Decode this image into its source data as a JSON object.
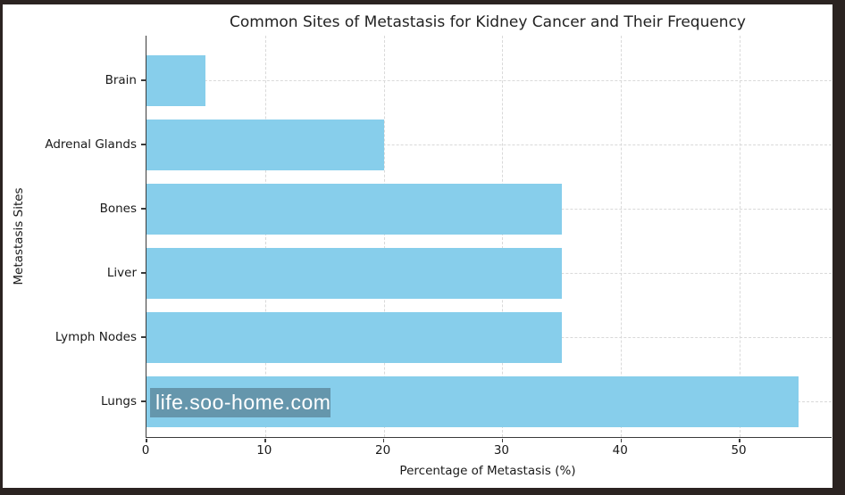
{
  "frame": {
    "background_color": "#2b2321",
    "figure_background_color": "#ffffff"
  },
  "chart_data": {
    "type": "bar",
    "orientation": "horizontal",
    "title": "Common Sites of Metastasis for Kidney Cancer and Their Frequency",
    "categories": [
      "Brain",
      "Adrenal Glands",
      "Bones",
      "Liver",
      "Lymph Nodes",
      "Lungs"
    ],
    "values": [
      5,
      20,
      35,
      35,
      35,
      55
    ],
    "xlabel": "Percentage of Metastasis (%)",
    "ylabel": "Metastasis Sites",
    "xticks": [
      0,
      10,
      20,
      30,
      40,
      50
    ],
    "xlim": [
      0,
      57.75
    ],
    "bar_color": "#87CEEB",
    "grid": "on",
    "grid_style": "dashed",
    "grid_color": "#d9d9d9",
    "spine_color": "#3a3a3a",
    "legend": "none"
  },
  "watermark": {
    "text": "life.soo-home.com",
    "text_color": "#ffffff",
    "background": "rgba(72,104,120,0.55)"
  }
}
